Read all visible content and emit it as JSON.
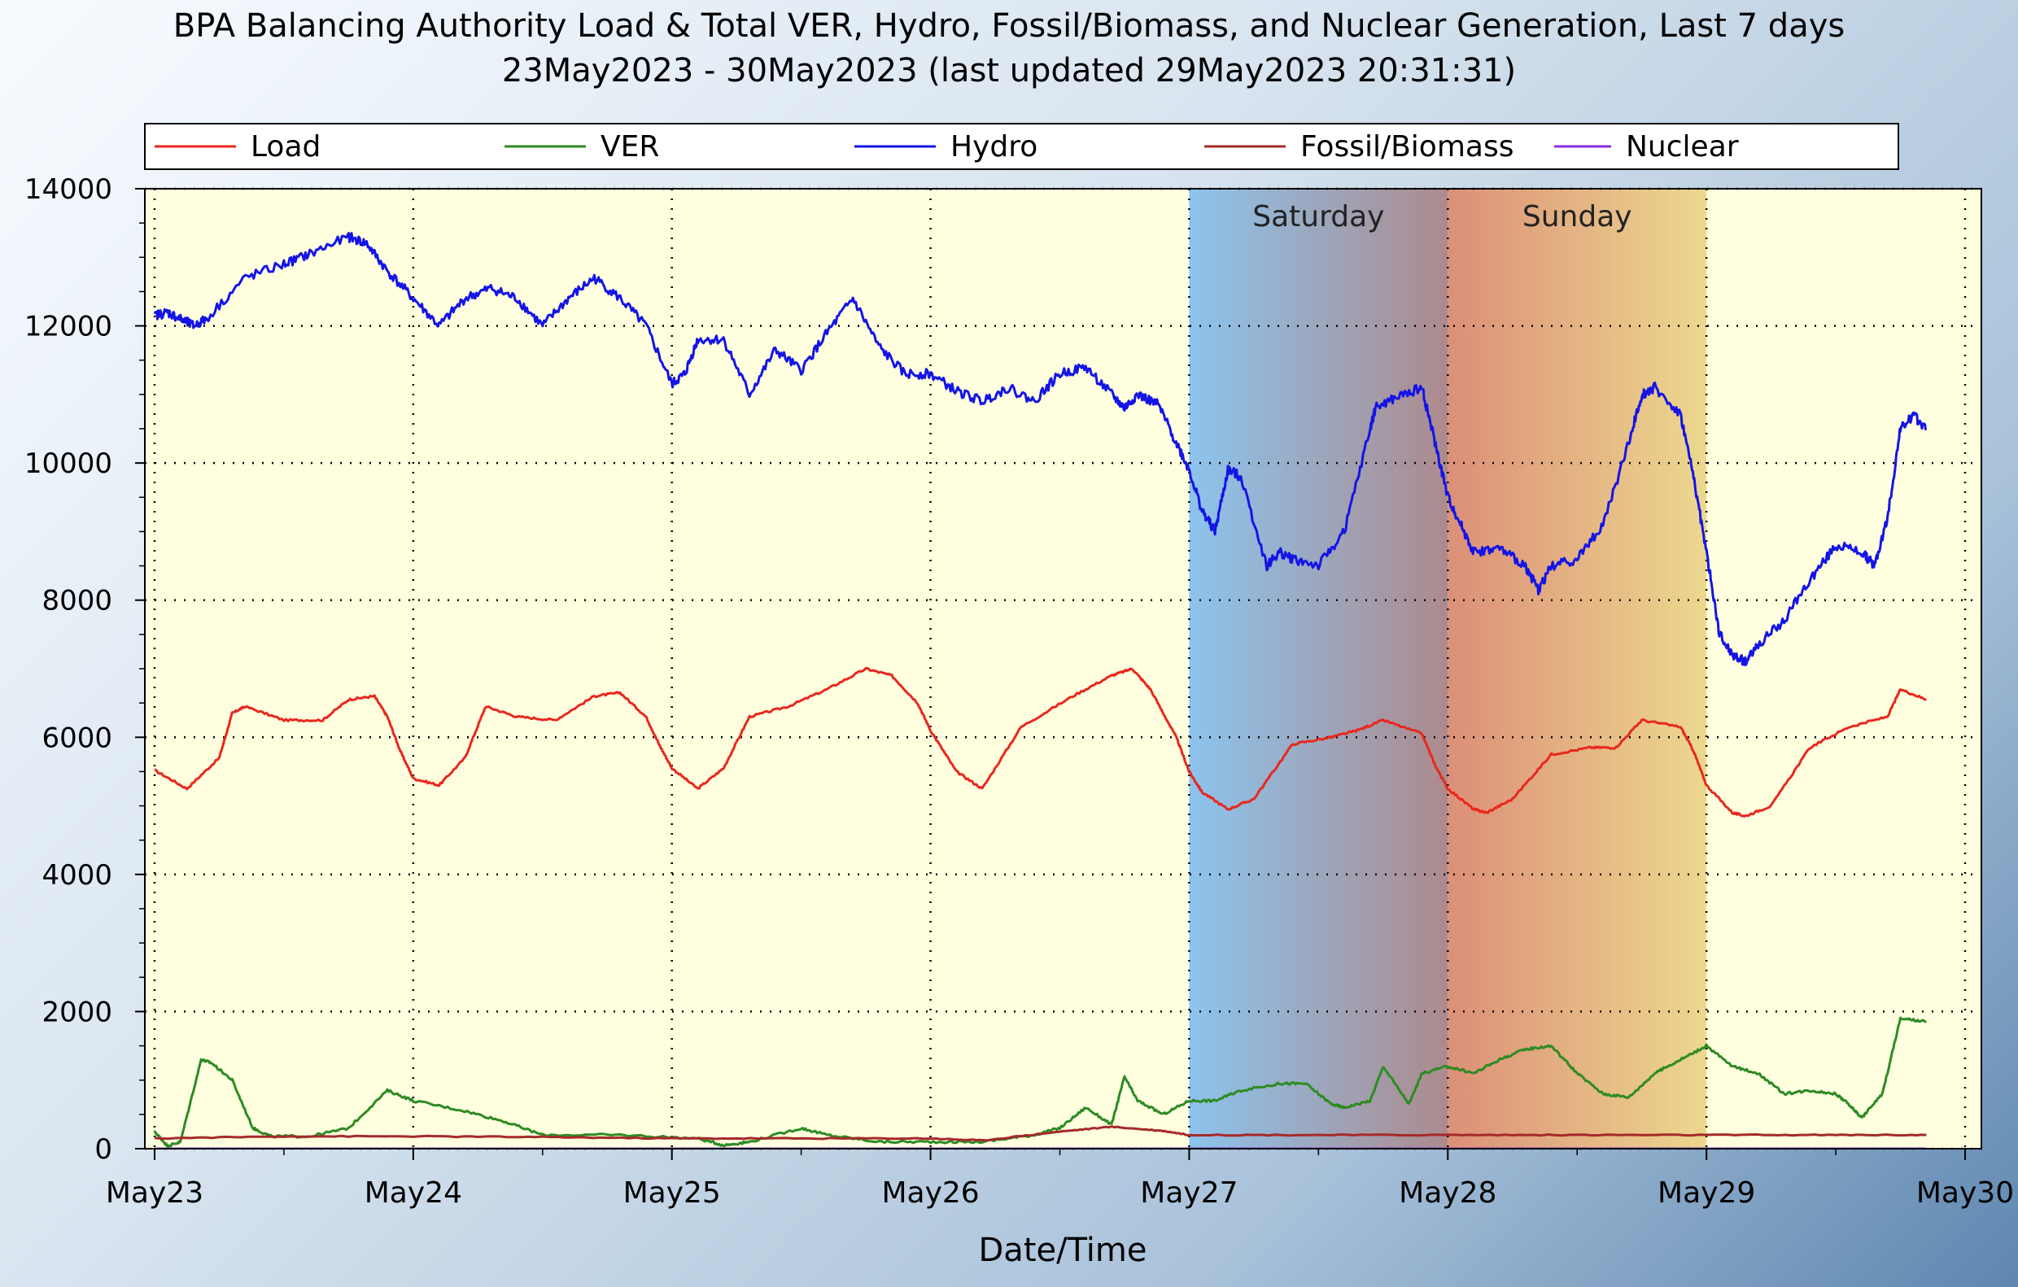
{
  "chart_data": {
    "type": "line",
    "title_line1": "BPA Balancing Authority Load & Total VER, Hydro, Fossil/Biomass, and Nuclear Generation, Last 7 days",
    "title_line2": "23May2023 - 30May2023 (last updated 29May2023 20:31:31)",
    "xlabel": "Date/Time",
    "ylabel": "",
    "xlim": [
      0,
      7
    ],
    "ylim": [
      0,
      14000
    ],
    "y_ticks": [
      0,
      2000,
      4000,
      6000,
      8000,
      10000,
      12000,
      14000
    ],
    "x_ticks": [
      0,
      1,
      2,
      3,
      4,
      5,
      6,
      7
    ],
    "x_tick_labels": [
      "May23",
      "May24",
      "May25",
      "May26",
      "May27",
      "May28",
      "May29",
      "May30"
    ],
    "grid": true,
    "legend_position": "top",
    "weekend_bands": [
      {
        "label": "Saturday",
        "start": 4,
        "end": 5
      },
      {
        "label": "Sunday",
        "start": 5,
        "end": 6
      }
    ],
    "colors": {
      "plot_background": "#ffffe0",
      "saturday_start": "#8cc4ee",
      "saturday_end": "#ad8a8c",
      "sunday_start": "#dc8f78",
      "sunday_end": "#ecd88e"
    },
    "series": [
      {
        "name": "Load",
        "color": "#e8281e",
        "x": [
          0,
          0.125,
          0.25,
          0.3,
          0.35,
          0.5,
          0.65,
          0.75,
          0.85,
          0.9,
          0.95,
          1.0,
          1.1,
          1.2,
          1.28,
          1.4,
          1.55,
          1.7,
          1.8,
          1.9,
          1.95,
          2.0,
          2.1,
          2.2,
          2.3,
          2.45,
          2.6,
          2.75,
          2.85,
          2.95,
          3.0,
          3.1,
          3.2,
          3.35,
          3.55,
          3.7,
          3.78,
          3.85,
          3.95,
          4.0,
          4.05,
          4.15,
          4.25,
          4.4,
          4.55,
          4.65,
          4.75,
          4.9,
          4.95,
          5.0,
          5.1,
          5.15,
          5.25,
          5.4,
          5.55,
          5.65,
          5.75,
          5.9,
          5.95,
          6.0,
          6.1,
          6.15,
          6.25,
          6.4,
          6.55,
          6.7,
          6.75,
          6.85
        ],
        "y": [
          5520,
          5250,
          5700,
          6350,
          6450,
          6250,
          6250,
          6550,
          6600,
          6300,
          5800,
          5400,
          5300,
          5700,
          6450,
          6300,
          6250,
          6600,
          6650,
          6300,
          5900,
          5550,
          5250,
          5550,
          6300,
          6450,
          6700,
          7000,
          6900,
          6500,
          6100,
          5500,
          5250,
          6150,
          6600,
          6900,
          7000,
          6700,
          6000,
          5500,
          5200,
          4950,
          5100,
          5900,
          6000,
          6100,
          6250,
          6050,
          5600,
          5250,
          4950,
          4900,
          5100,
          5750,
          5850,
          5850,
          6250,
          6150,
          5800,
          5300,
          4900,
          4850,
          5000,
          5850,
          6150,
          6300,
          6700,
          6550
        ]
      },
      {
        "name": "VER",
        "color": "#2e8b22",
        "x": [
          0,
          0.05,
          0.1,
          0.18,
          0.22,
          0.3,
          0.38,
          0.45,
          0.6,
          0.75,
          0.9,
          1.0,
          1.2,
          1.35,
          1.5,
          1.8,
          2.1,
          2.2,
          2.3,
          2.5,
          2.6,
          2.8,
          3.0,
          3.2,
          3.4,
          3.5,
          3.6,
          3.7,
          3.75,
          3.8,
          3.9,
          4.0,
          4.1,
          4.2,
          4.35,
          4.45,
          4.55,
          4.6,
          4.7,
          4.75,
          4.85,
          4.9,
          5.0,
          5.1,
          5.2,
          5.3,
          5.4,
          5.5,
          5.6,
          5.7,
          5.8,
          5.9,
          6.0,
          6.1,
          6.2,
          6.3,
          6.4,
          6.5,
          6.55,
          6.6,
          6.68,
          6.75,
          6.85
        ],
        "y": [
          250,
          40,
          100,
          1300,
          1250,
          1000,
          300,
          180,
          180,
          300,
          850,
          700,
          550,
          400,
          200,
          200,
          150,
          50,
          100,
          300,
          200,
          100,
          100,
          100,
          200,
          300,
          600,
          350,
          1050,
          700,
          500,
          700,
          700,
          850,
          950,
          950,
          650,
          600,
          700,
          1200,
          650,
          1100,
          1200,
          1100,
          1300,
          1450,
          1500,
          1100,
          800,
          750,
          1100,
          1300,
          1500,
          1200,
          1100,
          800,
          850,
          800,
          650,
          450,
          800,
          1900,
          1850
        ]
      },
      {
        "name": "Hydro",
        "color": "#1414e6",
        "x": [
          0,
          0.05,
          0.1,
          0.15,
          0.2,
          0.35,
          0.5,
          0.6,
          0.75,
          0.82,
          0.9,
          1.0,
          1.1,
          1.2,
          1.3,
          1.4,
          1.5,
          1.6,
          1.7,
          1.8,
          1.9,
          2.0,
          2.05,
          2.1,
          2.2,
          2.3,
          2.4,
          2.5,
          2.6,
          2.7,
          2.8,
          2.9,
          3.0,
          3.1,
          3.2,
          3.3,
          3.4,
          3.5,
          3.6,
          3.7,
          3.75,
          3.8,
          3.88,
          3.95,
          4.0,
          4.05,
          4.1,
          4.15,
          4.2,
          4.3,
          4.35,
          4.4,
          4.5,
          4.6,
          4.7,
          4.72,
          4.8,
          4.9,
          4.95,
          5.0,
          5.05,
          5.1,
          5.2,
          5.3,
          5.35,
          5.4,
          5.5,
          5.6,
          5.7,
          5.75,
          5.8,
          5.9,
          5.95,
          6.0,
          6.05,
          6.1,
          6.15,
          6.2,
          6.3,
          6.4,
          6.5,
          6.6,
          6.65,
          6.7,
          6.75,
          6.8,
          6.85
        ],
        "y": [
          12150,
          12200,
          12100,
          12000,
          12100,
          12700,
          12900,
          13050,
          13300,
          13200,
          12800,
          12400,
          12000,
          12400,
          12550,
          12400,
          12000,
          12400,
          12700,
          12400,
          12000,
          11150,
          11300,
          11800,
          11800,
          11000,
          11650,
          11350,
          11900,
          12400,
          11700,
          11300,
          11300,
          11050,
          10900,
          11100,
          10900,
          11300,
          11400,
          11000,
          10800,
          11000,
          10850,
          10300,
          9900,
          9300,
          9000,
          9900,
          9800,
          8500,
          8700,
          8600,
          8500,
          9000,
          10500,
          10800,
          10950,
          11100,
          10300,
          9500,
          9100,
          8700,
          8750,
          8500,
          8150,
          8500,
          8600,
          9100,
          10300,
          11000,
          11100,
          10700,
          9800,
          8700,
          7500,
          7200,
          7100,
          7350,
          7700,
          8300,
          8800,
          8700,
          8500,
          9200,
          10500,
          10700,
          10500
        ]
      },
      {
        "name": "Fossil/Biomass",
        "color": "#a52a2a",
        "x": [
          0,
          0.5,
          1.0,
          1.5,
          2.0,
          2.5,
          3.0,
          3.2,
          3.5,
          3.7,
          3.9,
          4.0,
          4.5,
          5.0,
          5.5,
          6.0,
          6.5,
          6.85
        ],
        "y": [
          150,
          180,
          180,
          170,
          150,
          150,
          150,
          120,
          250,
          320,
          260,
          200,
          200,
          200,
          200,
          200,
          200,
          200
        ]
      },
      {
        "name": "Nuclear",
        "color": "#8a2be2",
        "x": [
          0,
          6.85
        ],
        "y": [
          0,
          0
        ]
      }
    ]
  }
}
